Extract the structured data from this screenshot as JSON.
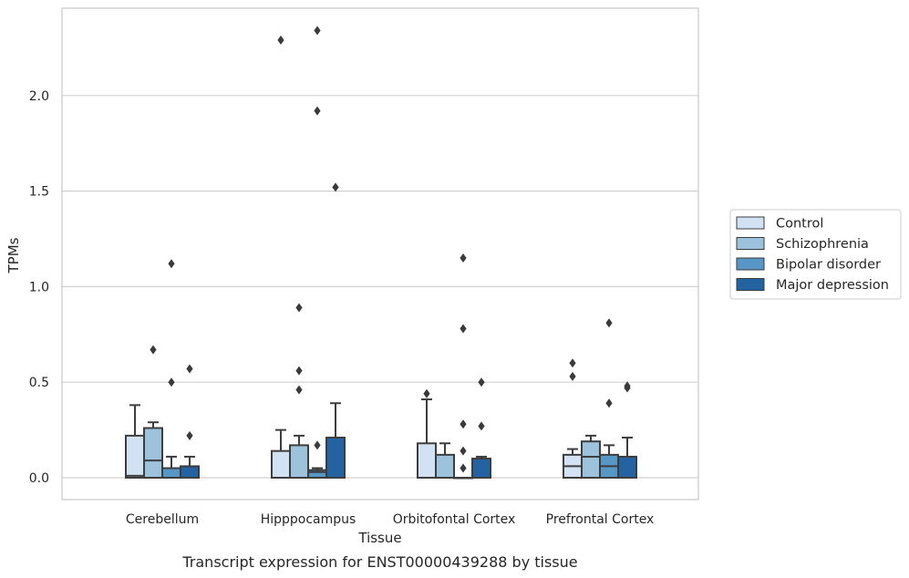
{
  "chart_data": {
    "type": "boxplot",
    "caption": "Transcript expression for ENST00000439288 by tissue",
    "xlabel": "Tissue",
    "ylabel": "TPMs",
    "ylim": [
      -0.11,
      2.45
    ],
    "yticks": [
      0.0,
      0.5,
      1.0,
      1.5,
      2.0
    ],
    "ytick_labels": [
      "0.0",
      "0.5",
      "1.0",
      "1.5",
      "2.0"
    ],
    "grid": "horizontal",
    "legend_position": "right",
    "categories": [
      "Cerebellum",
      "Hipppocampus",
      "Orbitofontal Cortex",
      "Prefrontal Cortex"
    ],
    "series": [
      {
        "name": "Control",
        "color": "#d3e2f2",
        "boxes": [
          {
            "min": 0.0,
            "q1": 0.0,
            "median": 0.01,
            "q3": 0.22,
            "max": 0.38,
            "outliers": []
          },
          {
            "min": 0.0,
            "q1": 0.0,
            "median": 0.0,
            "q3": 0.14,
            "max": 0.25,
            "outliers": [
              2.29
            ]
          },
          {
            "min": 0.0,
            "q1": 0.0,
            "median": 0.0,
            "q3": 0.18,
            "max": 0.41,
            "outliers": [
              0.44
            ]
          },
          {
            "min": 0.0,
            "q1": 0.0,
            "median": 0.06,
            "q3": 0.12,
            "max": 0.15,
            "outliers": [
              0.53,
              0.6
            ]
          }
        ]
      },
      {
        "name": "Schizophrenia",
        "color": "#9dc3dc",
        "boxes": [
          {
            "min": 0.0,
            "q1": 0.0,
            "median": 0.09,
            "q3": 0.26,
            "max": 0.29,
            "outliers": [
              0.67
            ]
          },
          {
            "min": 0.0,
            "q1": 0.0,
            "median": 0.0,
            "q3": 0.17,
            "max": 0.22,
            "outliers": [
              0.46,
              0.56,
              0.89
            ]
          },
          {
            "min": 0.0,
            "q1": 0.0,
            "median": 0.0,
            "q3": 0.12,
            "max": 0.18,
            "outliers": []
          },
          {
            "min": 0.0,
            "q1": 0.0,
            "median": 0.11,
            "q3": 0.19,
            "max": 0.22,
            "outliers": []
          }
        ]
      },
      {
        "name": "Bipolar disorder",
        "color": "#5697c5",
        "boxes": [
          {
            "min": 0.0,
            "q1": 0.0,
            "median": 0.0,
            "q3": 0.05,
            "max": 0.11,
            "outliers": [
              0.5,
              1.12
            ]
          },
          {
            "min": 0.0,
            "q1": 0.0,
            "median": 0.03,
            "q3": 0.04,
            "max": 0.05,
            "outliers": [
              0.17,
              1.92,
              2.34
            ]
          },
          {
            "min": 0.0,
            "q1": 0.0,
            "median": 0.0,
            "q3": 0.0,
            "max": 0.0,
            "outliers": [
              0.05,
              0.14,
              0.28,
              0.78,
              1.15
            ]
          },
          {
            "min": 0.0,
            "q1": 0.0,
            "median": 0.06,
            "q3": 0.12,
            "max": 0.17,
            "outliers": [
              0.39,
              0.81
            ]
          }
        ]
      },
      {
        "name": "Major depression",
        "color": "#2363a1",
        "boxes": [
          {
            "min": 0.0,
            "q1": 0.0,
            "median": 0.0,
            "q3": 0.06,
            "max": 0.11,
            "outliers": [
              0.22,
              0.57
            ]
          },
          {
            "min": 0.0,
            "q1": 0.0,
            "median": 0.0,
            "q3": 0.21,
            "max": 0.39,
            "outliers": [
              1.52
            ]
          },
          {
            "min": 0.0,
            "q1": 0.0,
            "median": 0.0,
            "q3": 0.1,
            "max": 0.11,
            "outliers": [
              0.27,
              0.5
            ]
          },
          {
            "min": 0.0,
            "q1": 0.0,
            "median": 0.0,
            "q3": 0.11,
            "max": 0.21,
            "outliers": [
              0.47,
              0.48
            ]
          }
        ]
      }
    ]
  },
  "colors": {
    "grid": "#d0d0d0",
    "frame": "#c8c8c8",
    "box_edge": "#3d3d3d"
  }
}
